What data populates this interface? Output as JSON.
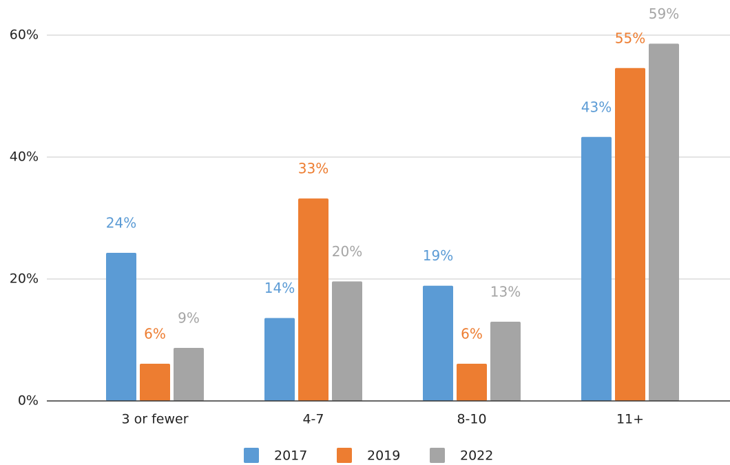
{
  "chart_data": {
    "type": "bar",
    "categories": [
      "3 or fewer",
      "4-7",
      "8-10",
      "11+"
    ],
    "series": [
      {
        "name": "2017",
        "color": "#5b9bd5",
        "values": [
          24.3,
          13.6,
          18.9,
          43.3
        ],
        "value_labels": [
          "24%",
          "14%",
          "19%",
          "43%"
        ]
      },
      {
        "name": "2019",
        "color": "#ed7d31",
        "values": [
          6.1,
          33.2,
          6.1,
          54.6
        ],
        "value_labels": [
          "6%",
          "33%",
          "6%",
          "55%"
        ]
      },
      {
        "name": "2022",
        "color": "#a5a5a5",
        "values": [
          8.7,
          19.6,
          13.0,
          58.6
        ],
        "value_labels": [
          "9%",
          "20%",
          "13%",
          "59%"
        ]
      }
    ],
    "ylim": [
      0,
      60
    ],
    "yticks": [
      {
        "value": 0,
        "label": "0%"
      },
      {
        "value": 20,
        "label": "20%"
      },
      {
        "value": 40,
        "label": "40%"
      },
      {
        "value": 60,
        "label": "60%"
      }
    ],
    "grid": true,
    "legend": "bottom"
  }
}
